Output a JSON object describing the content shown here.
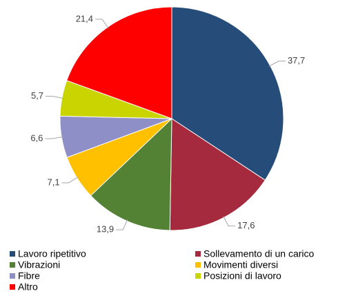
{
  "chart_data": {
    "type": "pie",
    "categories": [
      "Lavoro ripetitivo",
      "Sollevamento di un carico",
      "Vibrazioni",
      "Movimenti diversi",
      "Fibre",
      "Posizioni di lavoro",
      "Altro"
    ],
    "values": [
      37.7,
      17.6,
      13.9,
      7.1,
      6.6,
      5.7,
      21.4
    ],
    "value_labels": [
      "37,7",
      "17,6",
      "13,9",
      "7,1",
      "6,6",
      "5,7",
      "21,4"
    ],
    "colors": [
      "#264c7a",
      "#a52a3d",
      "#548235",
      "#ffc000",
      "#8e8fc7",
      "#c9d400",
      "#ff0000"
    ],
    "legend": "bottom"
  }
}
